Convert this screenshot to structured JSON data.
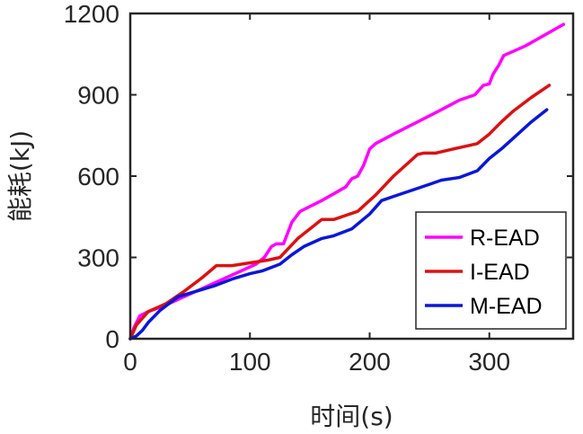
{
  "chart_data": {
    "type": "line",
    "title": "",
    "xlabel": "时间(s)",
    "ylabel": "能耗(kJ)",
    "xlim": [
      0,
      370
    ],
    "ylim": [
      0,
      1200
    ],
    "xticks": [
      0,
      100,
      200,
      300
    ],
    "yticks": [
      0,
      300,
      600,
      900,
      1200
    ],
    "grid": false,
    "legend_position": "bottom-right",
    "series": [
      {
        "name": "R-EAD",
        "color": "#ff00ff",
        "x": [
          0,
          3,
          8,
          15,
          30,
          45,
          60,
          75,
          90,
          105,
          112,
          118,
          122,
          128,
          135,
          142,
          160,
          180,
          185,
          190,
          195,
          200,
          205,
          220,
          240,
          260,
          275,
          288,
          295,
          300,
          303,
          308,
          312,
          330,
          350,
          362
        ],
        "y": [
          0,
          40,
          85,
          100,
          125,
          155,
          185,
          215,
          245,
          275,
          300,
          340,
          350,
          350,
          430,
          470,
          510,
          560,
          590,
          600,
          640,
          700,
          720,
          755,
          800,
          845,
          880,
          900,
          935,
          940,
          975,
          1010,
          1045,
          1080,
          1130,
          1160
        ]
      },
      {
        "name": "I-EAD",
        "color": "#dd1111",
        "x": [
          0,
          5,
          15,
          30,
          45,
          60,
          72,
          85,
          100,
          115,
          125,
          140,
          160,
          170,
          190,
          205,
          220,
          240,
          245,
          255,
          265,
          275,
          290,
          300,
          310,
          320,
          335,
          350
        ],
        "y": [
          0,
          50,
          100,
          130,
          175,
          225,
          270,
          270,
          280,
          290,
          300,
          370,
          440,
          440,
          470,
          530,
          600,
          680,
          685,
          685,
          695,
          705,
          720,
          755,
          800,
          840,
          890,
          935
        ]
      },
      {
        "name": "M-EAD",
        "color": "#0a17d8",
        "x": [
          0,
          5,
          10,
          15,
          25,
          40,
          55,
          70,
          85,
          100,
          110,
          125,
          135,
          145,
          160,
          170,
          185,
          200,
          210,
          220,
          240,
          250,
          260,
          275,
          290,
          300,
          310,
          320,
          335,
          348
        ],
        "y": [
          0,
          10,
          30,
          60,
          105,
          155,
          175,
          195,
          220,
          240,
          250,
          275,
          310,
          340,
          370,
          380,
          405,
          460,
          510,
          525,
          555,
          570,
          585,
          595,
          620,
          665,
          700,
          740,
          800,
          845
        ]
      }
    ]
  }
}
